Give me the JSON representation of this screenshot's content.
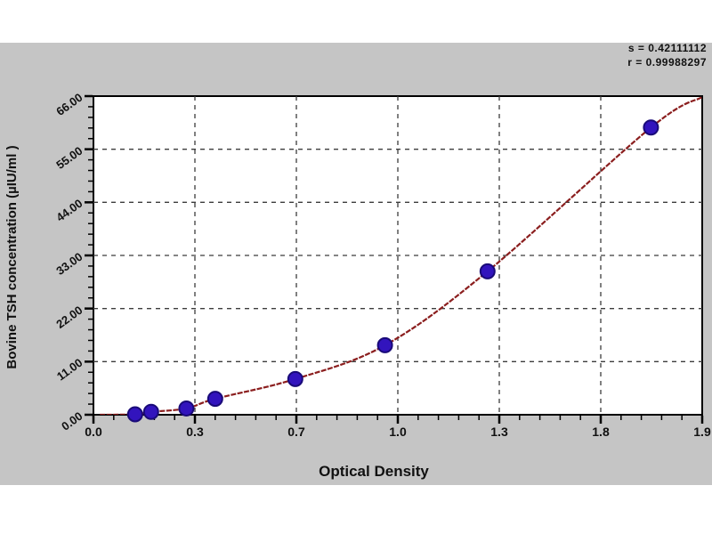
{
  "stats": {
    "s_label": "s = 0.42111112",
    "r_label": "r = 0.99988297"
  },
  "chart_data": {
    "type": "scatter",
    "title": "",
    "xlabel": "Optical Density",
    "ylabel": "Bovine TSH concentration (µIU/ml )",
    "xlim": [
      0.0,
      1.9
    ],
    "ylim": [
      0.0,
      66.0
    ],
    "grid": true,
    "legend": "none",
    "x_tick_labels": [
      "0.0",
      "0.3",
      "0.7",
      "1.0",
      "1.3",
      "1.8",
      "1.9"
    ],
    "y_tick_labels": [
      "0.00",
      "11.00",
      "22.00",
      "33.00",
      "44.00",
      "55.00",
      "66.00"
    ],
    "series": [
      {
        "name": "standard-points",
        "marker": "circle",
        "points": [
          {
            "od": 0.13,
            "conc": 0.1
          },
          {
            "od": 0.18,
            "conc": 0.6
          },
          {
            "od": 0.29,
            "conc": 1.3
          },
          {
            "od": 0.38,
            "conc": 3.3
          },
          {
            "od": 0.63,
            "conc": 7.4
          },
          {
            "od": 0.91,
            "conc": 14.4
          },
          {
            "od": 1.23,
            "conc": 29.7
          },
          {
            "od": 1.74,
            "conc": 59.5
          }
        ]
      },
      {
        "name": "fitted-curve",
        "marker": "none",
        "curve_points": [
          [
            0.02,
            0.0
          ],
          [
            0.13,
            0.1
          ],
          [
            0.18,
            0.6
          ],
          [
            0.29,
            1.3
          ],
          [
            0.38,
            3.3
          ],
          [
            0.63,
            7.4
          ],
          [
            0.91,
            14.4
          ],
          [
            1.23,
            29.7
          ],
          [
            1.74,
            59.5
          ],
          [
            1.9,
            65.8
          ]
        ]
      }
    ]
  },
  "colors": {
    "panel_bg": "#c5c5c5",
    "plot_bg": "#ffffff",
    "plot_border": "#000000",
    "grid": "#3c3c3c",
    "curve": "#8b1e1e",
    "marker_fill": "#3214bd",
    "marker_edge": "#190a78",
    "text": "#111111"
  }
}
